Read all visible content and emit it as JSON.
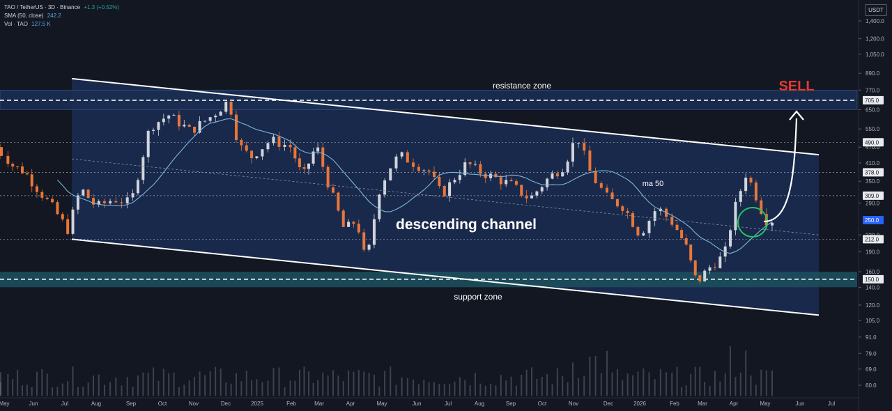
{
  "legend": {
    "symbol": "TAO / TetherUS · 3D · Binance",
    "change": "+1.3 (+0.52%)",
    "sma_label": "SMA (50, close)",
    "sma_value": "242.2",
    "vol_label": "Vol · TAO",
    "vol_value": "127.5 K"
  },
  "currency_button": "USDT",
  "colors": {
    "background": "#131722",
    "up": "#d1d4dc",
    "down": "#e8763a",
    "channel_fill": "#1b2d52",
    "support_fill": "#1c4e5c",
    "ma_line": "#7fb6d9",
    "sell": "#e53935",
    "highlight": "#22c55e"
  },
  "chart_data": {
    "type": "candlestick",
    "symbol": "TAO/USDT",
    "timeframe": "3D",
    "scale": "log",
    "y_range": [
      52,
      1650
    ],
    "x_ticks": [
      "May",
      "Jun",
      "Jul",
      "Aug",
      "Sep",
      "Oct",
      "Nov",
      "Dec",
      "2025",
      "Feb",
      "Mar",
      "Apr",
      "May",
      "Jun",
      "Jul",
      "Aug",
      "Sep",
      "Oct",
      "Nov",
      "Dec",
      "2026",
      "Feb",
      "Mar",
      "Apr",
      "May",
      "Jun",
      "Jul"
    ],
    "y_ticks": [
      1400,
      1200,
      1050,
      890,
      770,
      650,
      550,
      470,
      410,
      350,
      290,
      220,
      190,
      160,
      140,
      120,
      105,
      91,
      79,
      69,
      60
    ],
    "y_tick_labels": [
      "1,400.0",
      "1,200.0",
      "1,050.0",
      "890.0",
      "770.0",
      "650.0",
      "550.0",
      "470.0",
      "410.0",
      "350.0",
      "290.0",
      "220.0",
      "190.0",
      "160.0",
      "140.0",
      "120.0",
      "105.0",
      "91.0",
      "79.0",
      "69.0",
      "60.0"
    ],
    "price_labels": [
      {
        "value": 705,
        "text": "705.0",
        "highlight": false
      },
      {
        "value": 490,
        "text": "490.0",
        "highlight": false
      },
      {
        "value": 378,
        "text": "378.0",
        "highlight": false
      },
      {
        "value": 309,
        "text": "309.0",
        "highlight": false
      },
      {
        "value": 250,
        "text": "250.0",
        "highlight": true
      },
      {
        "value": 212,
        "text": "212.0",
        "highlight": false
      },
      {
        "value": 150,
        "text": "150.0",
        "highlight": false
      }
    ],
    "horizontal_levels": [
      {
        "value": 705,
        "style": "dashed-bold"
      },
      {
        "value": 490,
        "style": "dotted"
      },
      {
        "value": 378,
        "style": "dotted"
      },
      {
        "value": 309,
        "style": "dotted"
      },
      {
        "value": 212,
        "style": "dotted"
      },
      {
        "value": 150,
        "style": "dashed-bold"
      }
    ],
    "zones": [
      {
        "name": "resistance zone",
        "from": 650,
        "to": 770
      },
      {
        "name": "support zone",
        "from": 140,
        "to": 160
      }
    ],
    "channel": {
      "upper": [
        [
          "Jul",
          850
        ],
        [
          "Jul (next year)",
          440
        ]
      ],
      "lower": [
        [
          "Jul",
          212
        ],
        [
          "Jul (next year)",
          110
        ]
      ]
    },
    "annotations": {
      "channel_label": "descending channel",
      "ma_label": "ma 50",
      "resistance_label": "resistance zone",
      "support_label": "support zone",
      "sell_label": "SELL"
    },
    "sma_period": 50,
    "sma_last": 242.2,
    "last_close": 250,
    "volume_last": "127.5 K",
    "key_points": [
      {
        "x": "Jul",
        "close": 230
      },
      {
        "x": "Dec",
        "high": 705
      },
      {
        "x": "Apr",
        "low": 170
      },
      {
        "x": "Nov",
        "high": 530
      },
      {
        "x": "Feb",
        "low": 145
      },
      {
        "x": "Mar",
        "high": 378
      },
      {
        "x": "Apr",
        "close": 250
      }
    ]
  }
}
